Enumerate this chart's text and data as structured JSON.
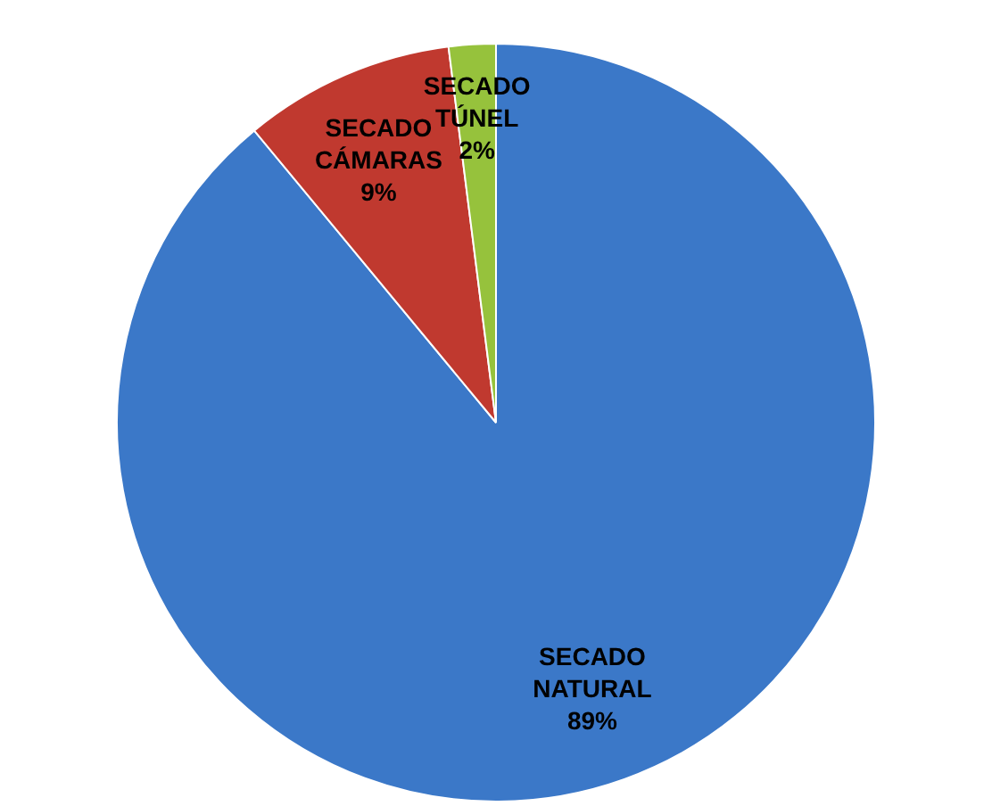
{
  "chart_data": {
    "type": "pie",
    "categories": [
      "SECADO NATURAL",
      "SECADO CÁMARAS",
      "SECADO TÚNEL"
    ],
    "values": [
      89,
      9,
      2
    ],
    "colors": [
      "#3b78c8",
      "#c0392f",
      "#96c23c"
    ],
    "value_labels": [
      "89%",
      "9%",
      "2%"
    ],
    "legend": false
  }
}
